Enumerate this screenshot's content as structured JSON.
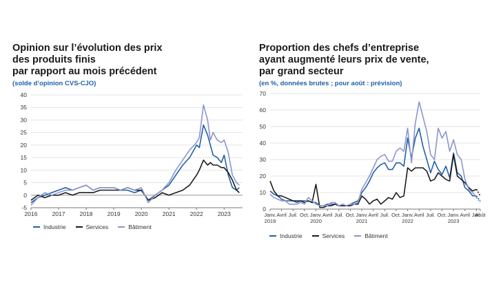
{
  "chart_data": [
    {
      "type": "line",
      "title": "Opinion sur l’évolution des prix\ndes produits finis\npar rapport au mois précédent",
      "title_lines": [
        "Opinion sur l’évolution des prix",
        "des produits finis",
        "par rapport au mois précédent"
      ],
      "subtitle": "(solde d’opinion CVS-CJO)",
      "xlabel": "",
      "ylabel": "",
      "ylim": [
        -5,
        40
      ],
      "yticks": [
        -5,
        0,
        5,
        10,
        15,
        20,
        25,
        30,
        35,
        40
      ],
      "xlim": [
        2016.0,
        2023.667
      ],
      "xticks": [
        {
          "x": 2016,
          "label": "2016"
        },
        {
          "x": 2017,
          "label": "2017"
        },
        {
          "x": 2018,
          "label": "2018"
        },
        {
          "x": 2019,
          "label": "2019"
        },
        {
          "x": 2020,
          "label": "2020"
        },
        {
          "x": 2021,
          "label": "2021"
        },
        {
          "x": 2022,
          "label": "2022"
        },
        {
          "x": 2023,
          "label": "2023"
        }
      ],
      "grid": true,
      "legend_position": "bottom",
      "series": [
        {
          "name": "Industrie",
          "color": "#1f5fa6",
          "x": [
            2016.0,
            2016.25,
            2016.5,
            2016.75,
            2017.0,
            2017.25,
            2017.5,
            2017.75,
            2018.0,
            2018.25,
            2018.5,
            2018.75,
            2019.0,
            2019.25,
            2019.5,
            2019.75,
            2020.0,
            2020.25,
            2020.5,
            2020.75,
            2021.0,
            2021.25,
            2021.5,
            2021.75,
            2022.0,
            2022.1,
            2022.25,
            2022.4,
            2022.5,
            2022.6,
            2022.75,
            2022.9,
            2023.0,
            2023.15,
            2023.3,
            2023.45,
            2023.55
          ],
          "values": [
            -3,
            -1,
            0,
            1,
            2,
            3,
            2,
            3,
            4,
            2,
            3,
            3,
            3,
            2,
            2,
            1,
            2,
            -2,
            0,
            2,
            4,
            8,
            12,
            15,
            20,
            19,
            28,
            24,
            20,
            16,
            15,
            13,
            16,
            8,
            3,
            2,
            3
          ]
        },
        {
          "name": "Services",
          "color": "#1a1a1a",
          "x": [
            2016.0,
            2016.25,
            2016.5,
            2016.75,
            2017.0,
            2017.25,
            2017.5,
            2017.75,
            2018.0,
            2018.25,
            2018.5,
            2018.75,
            2019.0,
            2019.25,
            2019.5,
            2019.75,
            2020.0,
            2020.25,
            2020.5,
            2020.75,
            2021.0,
            2021.25,
            2021.5,
            2021.75,
            2022.0,
            2022.1,
            2022.25,
            2022.4,
            2022.5,
            2022.6,
            2022.75,
            2022.9,
            2023.0,
            2023.15,
            2023.3,
            2023.45,
            2023.55
          ],
          "values": [
            -2,
            0,
            -1,
            0,
            0,
            1,
            0,
            1,
            1,
            1,
            2,
            2,
            2,
            2,
            3,
            2,
            2,
            -2,
            -1,
            1,
            0,
            1,
            2,
            4,
            8,
            10,
            14,
            12,
            13,
            12,
            12,
            11,
            11,
            9,
            6,
            2,
            1
          ]
        },
        {
          "name": "Bâtiment",
          "color": "#8b95cf",
          "x": [
            2016.0,
            2016.25,
            2016.5,
            2016.75,
            2017.0,
            2017.25,
            2017.5,
            2017.75,
            2018.0,
            2018.25,
            2018.5,
            2018.75,
            2019.0,
            2019.25,
            2019.5,
            2019.75,
            2020.0,
            2020.25,
            2020.5,
            2020.75,
            2021.0,
            2021.25,
            2021.5,
            2021.75,
            2022.0,
            2022.1,
            2022.25,
            2022.4,
            2022.5,
            2022.6,
            2022.75,
            2022.9,
            2023.0,
            2023.15,
            2023.3,
            2023.45,
            2023.55
          ],
          "values": [
            -4,
            -1,
            1,
            0,
            1,
            2,
            2,
            3,
            4,
            2,
            3,
            3,
            3,
            2,
            3,
            2,
            3,
            -3,
            0,
            2,
            5,
            10,
            14,
            18,
            21,
            23,
            36,
            30,
            22,
            25,
            22,
            21,
            22,
            17,
            8,
            5,
            4
          ]
        }
      ]
    },
    {
      "type": "line",
      "title": "Proportion des chefs d’entreprise\nayant augmenté leurs prix de vente,\npar grand secteur",
      "title_lines": [
        "Proportion des chefs d’entreprise",
        "ayant augmenté leurs prix de vente,",
        "par grand secteur"
      ],
      "subtitle": "(en %, données brutes ; pour août : prévision)",
      "xlabel": "",
      "ylabel": "",
      "ylim": [
        0,
        70
      ],
      "yticks": [
        0,
        10,
        20,
        30,
        40,
        50,
        60,
        70
      ],
      "xlim": [
        0,
        55
      ],
      "xticks": [
        {
          "x": 0,
          "label": "Janv.",
          "sub": "2019"
        },
        {
          "x": 3,
          "label": "Avril",
          "sub": ""
        },
        {
          "x": 6,
          "label": "Juil.",
          "sub": ""
        },
        {
          "x": 9,
          "label": "Oct.",
          "sub": ""
        },
        {
          "x": 12,
          "label": "Janv.",
          "sub": "2020"
        },
        {
          "x": 15,
          "label": "Avril",
          "sub": ""
        },
        {
          "x": 18,
          "label": "Juil.",
          "sub": ""
        },
        {
          "x": 21,
          "label": "Oct.",
          "sub": ""
        },
        {
          "x": 24,
          "label": "Janv.",
          "sub": "2021"
        },
        {
          "x": 27,
          "label": "Avril",
          "sub": ""
        },
        {
          "x": 30,
          "label": "Juil.",
          "sub": ""
        },
        {
          "x": 33,
          "label": "Oct.",
          "sub": ""
        },
        {
          "x": 36,
          "label": "Janv.",
          "sub": "2022"
        },
        {
          "x": 39,
          "label": "Avril",
          "sub": ""
        },
        {
          "x": 42,
          "label": "Juil.",
          "sub": ""
        },
        {
          "x": 45,
          "label": "Oct.",
          "sub": ""
        },
        {
          "x": 48,
          "label": "Janv.",
          "sub": "2023"
        },
        {
          "x": 51,
          "label": "Avril",
          "sub": ""
        },
        {
          "x": 54,
          "label": "Juil.",
          "sub": ""
        },
        {
          "x": 55,
          "label": "Août",
          "sub": ""
        }
      ],
      "grid": true,
      "legend_position": "bottom",
      "forecast_x": 55,
      "series": [
        {
          "name": "Industrie",
          "color": "#1f5fa6",
          "x": [
            0,
            1,
            2,
            3,
            4,
            5,
            6,
            7,
            8,
            9,
            10,
            11,
            12,
            13,
            14,
            15,
            16,
            17,
            18,
            19,
            20,
            21,
            22,
            23,
            24,
            25,
            26,
            27,
            28,
            29,
            30,
            31,
            32,
            33,
            34,
            35,
            36,
            37,
            38,
            39,
            40,
            41,
            42,
            43,
            44,
            45,
            46,
            47,
            48,
            49,
            50,
            51,
            52,
            53,
            54,
            55
          ],
          "values": [
            11,
            9,
            8,
            6,
            5,
            5,
            5,
            4,
            5,
            5,
            5,
            4,
            4,
            2,
            2,
            3,
            3,
            3,
            2,
            2,
            2,
            3,
            4,
            5,
            10,
            13,
            17,
            22,
            25,
            27,
            28,
            24,
            24,
            28,
            28,
            26,
            43,
            31,
            43,
            49,
            38,
            30,
            22,
            29,
            24,
            21,
            26,
            19,
            34,
            22,
            20,
            13,
            11,
            8,
            8,
            5
          ]
        },
        {
          "name": "Services",
          "color": "#1a1a1a",
          "x": [
            0,
            1,
            2,
            3,
            4,
            5,
            6,
            7,
            8,
            9,
            10,
            11,
            12,
            13,
            14,
            15,
            16,
            17,
            18,
            19,
            20,
            21,
            22,
            23,
            24,
            25,
            26,
            27,
            28,
            29,
            30,
            31,
            32,
            33,
            34,
            35,
            36,
            37,
            38,
            39,
            40,
            41,
            42,
            43,
            44,
            45,
            46,
            47,
            48,
            49,
            50,
            51,
            52,
            53,
            54,
            55
          ],
          "values": [
            17,
            11,
            8,
            8,
            7,
            6,
            5,
            5,
            5,
            4,
            5,
            4,
            15,
            1,
            1,
            2,
            2,
            3,
            2,
            2,
            2,
            2,
            3,
            3,
            8,
            6,
            3,
            5,
            6,
            3,
            5,
            7,
            6,
            10,
            7,
            8,
            25,
            23,
            25,
            25,
            25,
            23,
            17,
            18,
            22,
            20,
            18,
            17,
            33,
            20,
            18,
            16,
            13,
            11,
            12,
            8
          ]
        },
        {
          "name": "Bâtiment",
          "color": "#8b95cf",
          "x": [
            0,
            1,
            2,
            3,
            4,
            5,
            6,
            7,
            8,
            9,
            10,
            11,
            12,
            13,
            14,
            15,
            16,
            17,
            18,
            19,
            20,
            21,
            22,
            23,
            24,
            25,
            26,
            27,
            28,
            29,
            30,
            31,
            32,
            33,
            34,
            35,
            36,
            37,
            38,
            39,
            40,
            41,
            42,
            43,
            44,
            45,
            46,
            47,
            48,
            49,
            50,
            51,
            52,
            53,
            54,
            55
          ],
          "values": [
            9,
            7,
            6,
            5,
            5,
            3,
            3,
            3,
            4,
            3,
            7,
            5,
            3,
            2,
            2,
            2,
            4,
            4,
            2,
            3,
            2,
            3,
            3,
            4,
            12,
            16,
            20,
            25,
            30,
            32,
            33,
            29,
            29,
            35,
            37,
            35,
            49,
            28,
            52,
            65,
            56,
            47,
            33,
            30,
            49,
            43,
            47,
            35,
            42,
            33,
            30,
            18,
            12,
            10,
            7,
            4
          ]
        }
      ]
    }
  ]
}
